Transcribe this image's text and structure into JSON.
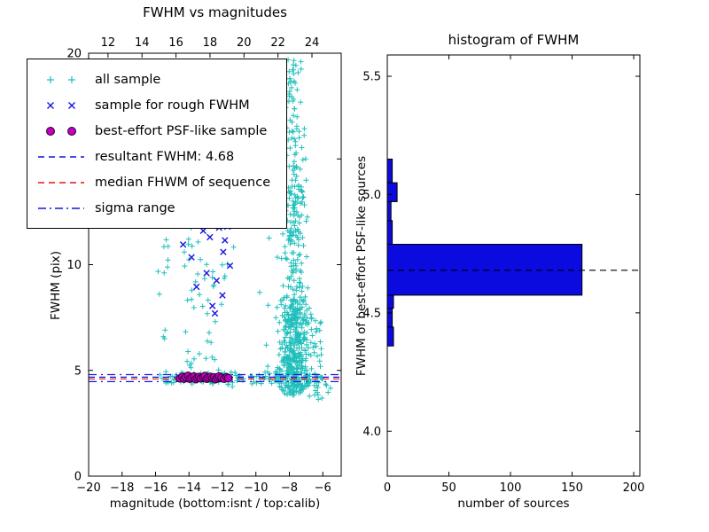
{
  "figure": {
    "background": "#ffffff"
  },
  "legend": {
    "items": [
      {
        "label": "all sample",
        "marker": "plus",
        "color": "#20bfbb"
      },
      {
        "label": "sample for rough FWHM",
        "marker": "cross",
        "color": "#1515e0"
      },
      {
        "label": "best-effort PSF-like sample",
        "marker": "circle",
        "color": "#bf00bf",
        "edge": "#2b002b"
      },
      {
        "label": "resultant FWHM: 4.68",
        "marker": "dashed-line",
        "color": "#1515e0"
      },
      {
        "label": "median FHWM of sequence",
        "marker": "dashed-line",
        "color": "#e01515"
      },
      {
        "label": "sigma range",
        "marker": "dashdot-line",
        "color": "#1515e0"
      }
    ]
  },
  "chart_data": [
    {
      "type": "scatter",
      "title": "FWHM vs magnitudes",
      "xlabel": "magnitude (bottom:isnt / top:calib)",
      "ylabel": "FWHM (pix)",
      "xlim": [
        -20,
        -4.9
      ],
      "ylim": [
        0,
        20
      ],
      "xticks": [
        [
          -20,
          "−20"
        ],
        [
          -18,
          "−18"
        ],
        [
          -16,
          "−16"
        ],
        [
          -14,
          "−14"
        ],
        [
          -12,
          "−12"
        ],
        [
          -10,
          "−10"
        ],
        [
          -8,
          "−8"
        ],
        [
          -6,
          "−6"
        ]
      ],
      "yticks": [
        [
          0,
          "0"
        ],
        [
          5,
          "5"
        ],
        [
          10,
          "10"
        ],
        [
          15,
          "15"
        ],
        [
          20,
          "20"
        ]
      ],
      "top_axis": {
        "lim": [
          10.86,
          25.72
        ],
        "ticks": [
          [
            12,
            "12"
          ],
          [
            14,
            "14"
          ],
          [
            16,
            "16"
          ],
          [
            18,
            "18"
          ],
          [
            20,
            "20"
          ],
          [
            22,
            "22"
          ],
          [
            24,
            "24"
          ]
        ]
      },
      "series": [
        {
          "name": "all sample",
          "marker": "plus",
          "color": "#20bfbb",
          "clusters": [
            {
              "n": 140,
              "xdist": "uniform",
              "x": [
                -15.9,
                -6.1
              ],
              "ydist": "normal",
              "y": [
                4.62,
                0.15
              ]
            },
            {
              "n": 320,
              "xdist": "normal",
              "x": [
                -7.7,
                0.45
              ],
              "ydist": "uniform",
              "y": [
                3.8,
                8.5
              ]
            },
            {
              "n": 130,
              "xdist": "normal",
              "x": [
                -7.7,
                0.35
              ],
              "ydist": "uniform",
              "y": [
                8.5,
                14
              ]
            },
            {
              "n": 70,
              "xdist": "normal",
              "x": [
                -7.7,
                0.3
              ],
              "ydist": "uniform",
              "y": [
                14,
                20
              ]
            },
            {
              "n": 60,
              "xdist": "normal",
              "x": [
                -7.8,
                0.55
              ],
              "ydist": "uniform",
              "y": [
                4.0,
                6.5
              ]
            },
            {
              "n": 12,
              "xdist": "uniform",
              "x": [
                -15.9,
                -15.1
              ],
              "ydist": "uniform",
              "y": [
                6,
                13
              ]
            },
            {
              "n": 26,
              "xdist": "uniform",
              "x": [
                -14.3,
                -13.2
              ],
              "ydist": "uniform",
              "y": [
                5,
                12.5
              ]
            },
            {
              "n": 20,
              "xdist": "uniform",
              "x": [
                -13.2,
                -12.1
              ],
              "ydist": "uniform",
              "y": [
                5,
                13.5
              ]
            },
            {
              "n": 18,
              "xdist": "uniform",
              "x": [
                -12.2,
                -11.2
              ],
              "ydist": "uniform",
              "y": [
                5.2,
                20
              ]
            },
            {
              "n": 16,
              "xdist": "uniform",
              "x": [
                -11.2,
                -8.9
              ],
              "ydist": "uniform",
              "y": [
                6,
                19.5
              ]
            },
            {
              "n": 40,
              "xdist": "uniform",
              "x": [
                -7.3,
                -6.0
              ],
              "ydist": "uniform",
              "y": [
                3.6,
                7.5
              ]
            },
            {
              "n": 10,
              "xdist": "uniform",
              "x": [
                -6.4,
                -5.5
              ],
              "ydist": "uniform",
              "y": [
                3.5,
                5.0
              ]
            }
          ]
        },
        {
          "name": "sample for rough FWHM",
          "marker": "cross",
          "color": "#1515e0",
          "points": [
            [
              -14.35,
              10.95
            ],
            [
              -13.85,
              10.35
            ],
            [
              -13.55,
              8.95
            ],
            [
              -13.15,
              11.6
            ],
            [
              -12.95,
              9.6
            ],
            [
              -12.75,
              11.3
            ],
            [
              -12.6,
              8.05
            ],
            [
              -12.35,
              9.25
            ],
            [
              -12.2,
              11.75
            ],
            [
              -12.0,
              8.55
            ],
            [
              -11.85,
              11.15
            ],
            [
              -11.7,
              11.8
            ],
            [
              -11.55,
              9.95
            ],
            [
              -12.45,
              7.7
            ],
            [
              -11.95,
              10.6
            ]
          ]
        },
        {
          "name": "best-effort PSF-like sample",
          "marker": "circle",
          "color": "#bf00bf",
          "edge": "#2b002b",
          "points": [
            [
              -14.55,
              4.62
            ],
            [
              -14.4,
              4.7
            ],
            [
              -14.3,
              4.6
            ],
            [
              -14.2,
              4.68
            ],
            [
              -14.05,
              4.75
            ],
            [
              -13.95,
              4.6
            ],
            [
              -13.85,
              4.66
            ],
            [
              -13.7,
              4.72
            ],
            [
              -13.6,
              4.58
            ],
            [
              -13.5,
              4.65
            ],
            [
              -13.4,
              4.7
            ],
            [
              -13.3,
              4.62
            ],
            [
              -13.15,
              4.68
            ],
            [
              -13.05,
              4.74
            ],
            [
              -12.95,
              4.6
            ],
            [
              -12.85,
              4.66
            ],
            [
              -12.7,
              4.7
            ],
            [
              -12.6,
              4.62
            ],
            [
              -12.5,
              4.68
            ],
            [
              -12.4,
              4.58
            ],
            [
              -12.3,
              4.65
            ],
            [
              -12.2,
              4.72
            ],
            [
              -12.05,
              4.66
            ],
            [
              -11.9,
              4.6
            ],
            [
              -11.75,
              4.68
            ],
            [
              -11.65,
              4.63
            ]
          ]
        }
      ],
      "hlines": [
        {
          "name": "resultant FWHM",
          "value": 4.68,
          "style": "dashed",
          "color": "#1515e0"
        },
        {
          "name": "median FHWM of sequence",
          "value": 4.6,
          "style": "dashed",
          "color": "#e01515"
        },
        {
          "name": "sigma range low",
          "value": 4.47,
          "style": "dashdot",
          "color": "#1515e0"
        },
        {
          "name": "sigma range high",
          "value": 4.8,
          "style": "dashdot",
          "color": "#1515e0"
        }
      ]
    },
    {
      "type": "bar",
      "orientation": "horizontal-histogram",
      "title": "histogram of FWHM",
      "xlabel": "number of sources",
      "ylabel": "FWHM of best-effort PSF-like sources",
      "xlim": [
        0,
        205
      ],
      "ylim": [
        3.81,
        5.59
      ],
      "xticks": [
        [
          0,
          "0"
        ],
        [
          50,
          "50"
        ],
        [
          100,
          "100"
        ],
        [
          150,
          "150"
        ],
        [
          200,
          "200"
        ]
      ],
      "yticks": [
        [
          4.0,
          "4.0"
        ],
        [
          4.5,
          "4.5"
        ],
        [
          5.0,
          "5.0"
        ],
        [
          5.5,
          "5.5"
        ]
      ],
      "bar_color": "#0b0bdf",
      "bar_edge": "#000000",
      "bins": [
        {
          "y0": 4.36,
          "y1": 4.44,
          "count": 5
        },
        {
          "y0": 4.44,
          "y1": 4.52,
          "count": 4
        },
        {
          "y0": 4.52,
          "y1": 4.575,
          "count": 5
        },
        {
          "y0": 4.575,
          "y1": 4.79,
          "count": 158
        },
        {
          "y0": 4.79,
          "y1": 4.89,
          "count": 4
        },
        {
          "y0": 4.89,
          "y1": 4.97,
          "count": 3
        },
        {
          "y0": 4.97,
          "y1": 5.05,
          "count": 8
        },
        {
          "y0": 5.05,
          "y1": 5.15,
          "count": 4
        }
      ],
      "hline": {
        "name": "resultant FWHM",
        "value": 4.68,
        "style": "dashed",
        "color": "#000000"
      }
    }
  ]
}
